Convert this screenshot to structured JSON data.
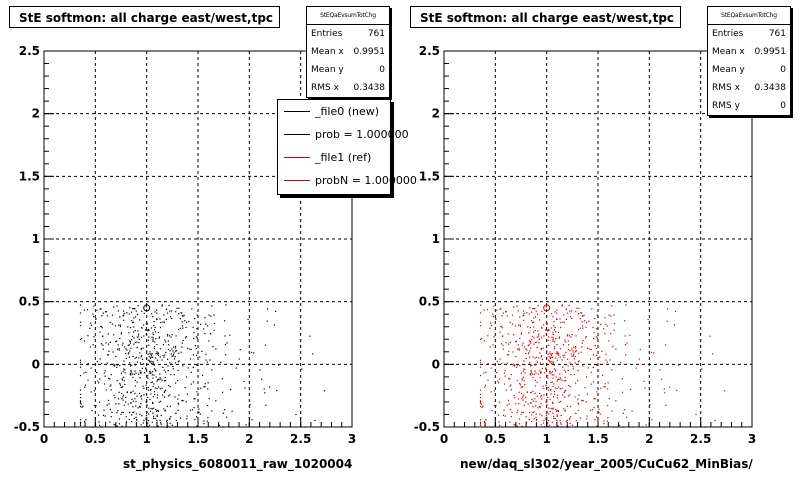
{
  "chart_data": [
    {
      "type": "scatter",
      "title": "StE softmon: all charge east/west,tpc",
      "xlabel": "st_physics_6080011_raw_1020004",
      "xlim": [
        0,
        3
      ],
      "ylim": [
        -0.5,
        2.5
      ],
      "x_ticks": [
        "0",
        "0.5",
        "1",
        "1.5",
        "2",
        "2.5",
        "3"
      ],
      "y_ticks": [
        "-0.5",
        "0",
        "0.5",
        "1",
        "1.5",
        "2",
        "2.5"
      ],
      "grid": true,
      "marker_color": "#000000",
      "stats": {
        "header": "StEQaEvsumTotChg",
        "rows": [
          {
            "label": "Entries",
            "value": "761"
          },
          {
            "label": "Mean x",
            "value": "0.9951"
          },
          {
            "label": "Mean y",
            "value": "0"
          },
          {
            "label": "RMS x",
            "value": "0.3438"
          }
        ]
      },
      "legend": {
        "placement": "top-right",
        "entries": [
          {
            "label": "_file0 (new)",
            "color": "#000000"
          },
          {
            "label": "prob = 1.000000",
            "color": "#000000"
          },
          {
            "label": "_file1 (ref)",
            "color": "#cc0000"
          },
          {
            "label": "probN = 1.000000",
            "color": "#cc0000"
          }
        ]
      },
      "series": [
        {
          "name": "_file0 (new)",
          "x_range": [
            0.35,
            2.8
          ],
          "y_range": [
            -0.5,
            0.5
          ],
          "count": 761
        }
      ]
    },
    {
      "type": "scatter",
      "title": "StE softmon: all charge east/west,tpc",
      "xlabel": "new/daq_sl302/year_2005/CuCu62_MinBias/",
      "xlim": [
        0,
        3
      ],
      "ylim": [
        -0.5,
        2.5
      ],
      "x_ticks": [
        "0",
        "0.5",
        "1",
        "1.5",
        "2",
        "2.5",
        "3"
      ],
      "y_ticks": [
        "-0.5",
        "0",
        "0.5",
        "1",
        "1.5",
        "2",
        "2.5"
      ],
      "grid": true,
      "marker_color": "#cc0000",
      "stats": {
        "header": "StEQaEvsumTotChg",
        "rows": [
          {
            "label": "Entries",
            "value": "761"
          },
          {
            "label": "Mean x",
            "value": "0.9951"
          },
          {
            "label": "Mean y",
            "value": "0"
          },
          {
            "label": "RMS x",
            "value": "0.3438"
          },
          {
            "label": "RMS y",
            "value": "0"
          }
        ]
      },
      "series": [
        {
          "name": "_file1 (ref)",
          "x_range": [
            0.35,
            2.8
          ],
          "y_range": [
            -0.5,
            0.5
          ],
          "count": 761
        }
      ]
    }
  ]
}
